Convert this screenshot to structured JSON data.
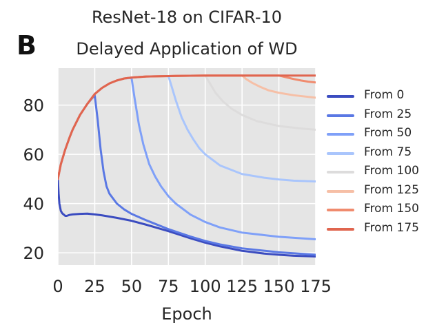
{
  "panel_label": "B",
  "chart_data": {
    "type": "line",
    "title": "ResNet-18 on CIFAR-10",
    "subtitle": "Delayed Application of WD",
    "xlabel": "Epoch",
    "ylabel": "",
    "xlim": [
      0,
      175
    ],
    "ylim": [
      15,
      95
    ],
    "xticks": [
      0,
      25,
      50,
      75,
      100,
      125,
      150,
      175
    ],
    "yticks": [
      20,
      40,
      60,
      80
    ],
    "grid": true,
    "legend_position": "right",
    "series": [
      {
        "name": "From 0",
        "color": "#3b4cc0",
        "x": [
          0,
          0.5,
          1,
          2,
          3,
          4,
          5,
          6,
          8,
          10,
          15,
          20,
          25,
          30,
          40,
          50,
          60,
          75,
          90,
          100,
          110,
          125,
          140,
          150,
          160,
          175
        ],
        "y": [
          50,
          44,
          40,
          37,
          36,
          35.5,
          35,
          35,
          35.4,
          35.6,
          35.8,
          35.9,
          35.6,
          35.2,
          34.2,
          33,
          31.4,
          28.8,
          25.9,
          24.1,
          22.6,
          20.8,
          19.7,
          19.2,
          18.8,
          18.5
        ]
      },
      {
        "name": "From 25",
        "color": "#5a78e4",
        "x": [
          0,
          2,
          5,
          8,
          10,
          15,
          20,
          25,
          27,
          29,
          31,
          33,
          35,
          40,
          45,
          50,
          60,
          75,
          90,
          100,
          110,
          125,
          150,
          175
        ],
        "y": [
          50,
          56,
          62,
          67,
          70,
          76,
          80.5,
          84,
          74,
          62,
          53,
          47,
          44,
          40,
          37.6,
          35.8,
          33.2,
          29.6,
          26.6,
          24.8,
          23.4,
          21.8,
          20.2,
          19.2
        ]
      },
      {
        "name": "From 50",
        "color": "#7fa0f8",
        "x": [
          0,
          2,
          5,
          8,
          10,
          15,
          20,
          25,
          30,
          35,
          40,
          45,
          50,
          52,
          55,
          58,
          62,
          66,
          70,
          75,
          80,
          90,
          100,
          110,
          125,
          150,
          175
        ],
        "y": [
          50,
          56,
          62,
          67,
          70,
          76,
          80.5,
          84.5,
          87,
          88.8,
          90,
          90.8,
          91,
          83,
          72,
          64,
          56,
          51,
          47,
          43,
          40,
          35.5,
          32.5,
          30.3,
          28.2,
          26.5,
          25.5
        ]
      },
      {
        "name": "From 75",
        "color": "#a9c5fc",
        "x": [
          0,
          2,
          5,
          8,
          10,
          15,
          20,
          25,
          30,
          35,
          40,
          45,
          50,
          60,
          75,
          77,
          80,
          84,
          88,
          92,
          96,
          100,
          110,
          125,
          140,
          150,
          160,
          175
        ],
        "y": [
          50,
          56,
          62,
          67,
          70,
          76,
          80.5,
          84.5,
          87,
          88.8,
          90,
          90.8,
          91.2,
          91.6,
          91.8,
          88,
          82,
          75,
          70,
          66,
          62.5,
          60,
          55.5,
          52,
          50.5,
          49.8,
          49.3,
          49
        ]
      },
      {
        "name": "From 100",
        "color": "#dddcdc",
        "x": [
          0,
          2,
          5,
          8,
          10,
          15,
          20,
          25,
          30,
          35,
          40,
          45,
          50,
          60,
          75,
          100,
          103,
          107,
          112,
          118,
          125,
          135,
          150,
          165,
          175
        ],
        "y": [
          50,
          56,
          62,
          67,
          70,
          76,
          80.5,
          84.5,
          87,
          88.8,
          90,
          90.8,
          91.2,
          91.6,
          91.8,
          92,
          89,
          85,
          81.5,
          78.5,
          76,
          73.5,
          71.5,
          70.5,
          70
        ]
      },
      {
        "name": "From 125",
        "color": "#f6bfa6",
        "x": [
          0,
          2,
          5,
          8,
          10,
          15,
          20,
          25,
          30,
          35,
          40,
          45,
          50,
          60,
          75,
          100,
          125,
          128,
          132,
          137,
          143,
          150,
          160,
          175
        ],
        "y": [
          50,
          56,
          62,
          67,
          70,
          76,
          80.5,
          84.5,
          87,
          88.8,
          90,
          90.8,
          91.2,
          91.6,
          91.8,
          92,
          92,
          90.5,
          89,
          87.5,
          86,
          85,
          84,
          83
        ]
      },
      {
        "name": "From 150",
        "color": "#f08b6e",
        "x": [
          0,
          2,
          5,
          8,
          10,
          15,
          20,
          25,
          30,
          35,
          40,
          45,
          50,
          60,
          75,
          100,
          125,
          150,
          155,
          160,
          165,
          170,
          175
        ],
        "y": [
          50,
          56,
          62,
          67,
          70,
          76,
          80.5,
          84.5,
          87,
          88.8,
          90,
          90.8,
          91.2,
          91.6,
          91.8,
          92,
          92,
          92,
          91.3,
          90.6,
          90,
          89.5,
          89.2
        ]
      },
      {
        "name": "From 175",
        "color": "#e0654f",
        "x": [
          0,
          2,
          5,
          8,
          10,
          15,
          20,
          25,
          30,
          35,
          40,
          45,
          50,
          60,
          75,
          100,
          125,
          150,
          175
        ],
        "y": [
          50,
          56,
          62,
          67,
          70,
          76,
          80.5,
          84.5,
          87,
          88.8,
          90,
          90.8,
          91.2,
          91.6,
          91.8,
          92,
          92,
          92,
          92
        ]
      }
    ]
  }
}
